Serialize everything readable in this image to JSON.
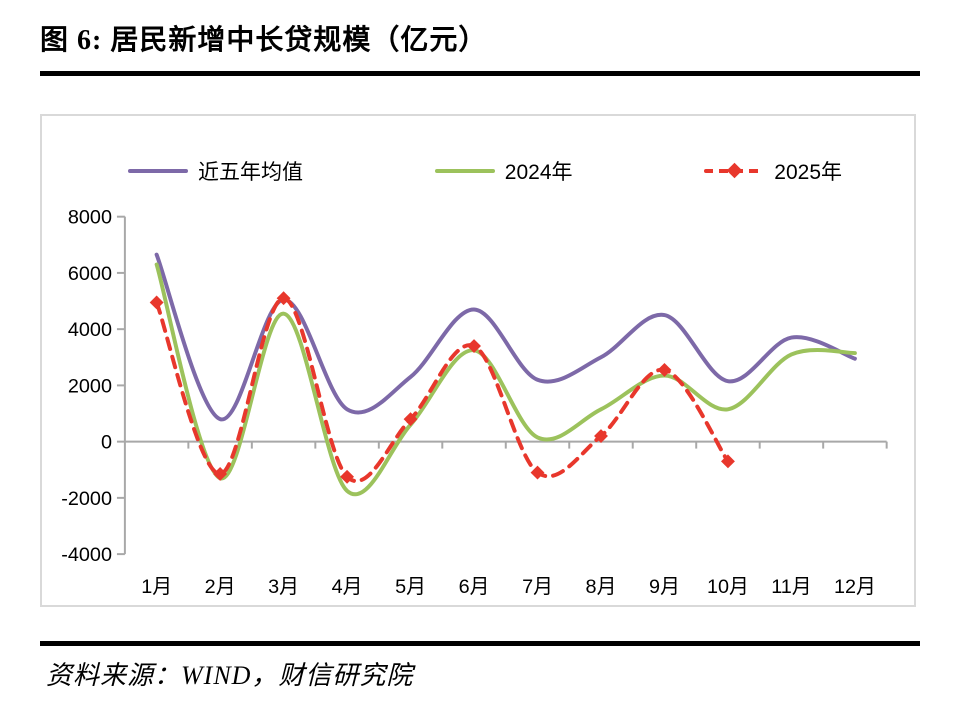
{
  "header": {
    "title": "图 6:  居民新增中长贷规模（亿元）"
  },
  "source": {
    "text": "资料来源：WIND，财信研究院"
  },
  "chart_data": {
    "type": "line",
    "title": "图 6: 居民新增中长贷规模（亿元）",
    "xlabel": "",
    "ylabel": "",
    "unit": "亿元",
    "grid": false,
    "legend_position": "top",
    "categories": [
      "1月",
      "2月",
      "3月",
      "4月",
      "5月",
      "6月",
      "7月",
      "8月",
      "9月",
      "10月",
      "11月",
      "12月"
    ],
    "yticks": [
      8000,
      6000,
      4000,
      2000,
      0,
      -2000,
      -4000
    ],
    "ylim": [
      -4000,
      8000
    ],
    "colors": {
      "axis": "#a8a8a8",
      "text": "#000000",
      "chart_border": "#d9d9d9"
    },
    "series": [
      {
        "name": "近五年均值",
        "color": "#7d69a8",
        "style": "solid",
        "smooth": true,
        "values": [
          6650,
          800,
          5050,
          1150,
          2300,
          4700,
          2200,
          3000,
          4500,
          2150,
          3700,
          2950
        ]
      },
      {
        "name": "2024年",
        "color": "#9cc25c",
        "style": "solid",
        "smooth": true,
        "values": [
          6300,
          -1300,
          4550,
          -1750,
          600,
          3250,
          150,
          1150,
          2350,
          1150,
          3100,
          3150
        ]
      },
      {
        "name": "2025年",
        "color": "#e8372c",
        "style": "dashed",
        "marker": "diamond",
        "smooth": true,
        "values": [
          4950,
          -1150,
          5100,
          -1250,
          800,
          3400,
          -1100,
          200,
          2550,
          -700,
          null,
          null
        ]
      }
    ]
  }
}
